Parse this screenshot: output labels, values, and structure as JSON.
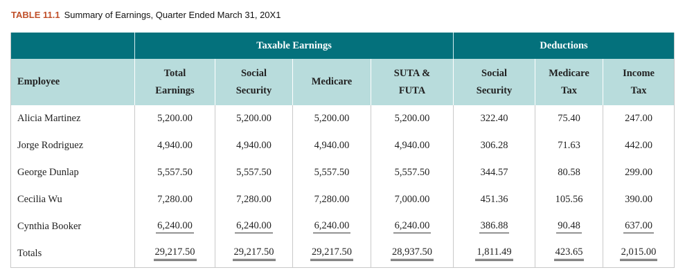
{
  "caption": {
    "number": "TABLE 11.1",
    "title": "Summary of Earnings, Quarter Ended March 31, 20X1"
  },
  "group_headers": {
    "taxable": "Taxable Earnings",
    "deductions": "Deductions"
  },
  "columns": {
    "employee": "Employee",
    "total_l1": "Total",
    "total_l2": "Earnings",
    "ss_l1": "Social",
    "ss_l2": "Security",
    "medicare": "Medicare",
    "suta_l1": "SUTA &",
    "suta_l2": "FUTA",
    "dss_l1": "Social",
    "dss_l2": "Security",
    "dmed_l1": "Medicare",
    "dmed_l2": "Tax",
    "inc_l1": "Income",
    "inc_l2": "Tax"
  },
  "rows": [
    [
      "Alicia Martinez",
      "5,200.00",
      "5,200.00",
      "5,200.00",
      "5,200.00",
      "322.40",
      "75.40",
      "247.00"
    ],
    [
      "Jorge Rodriguez",
      "4,940.00",
      "4,940.00",
      "4,940.00",
      "4,940.00",
      "306.28",
      "71.63",
      "442.00"
    ],
    [
      "George Dunlap",
      "5,557.50",
      "5,557.50",
      "5,557.50",
      "5,557.50",
      "344.57",
      "80.58",
      "299.00"
    ],
    [
      "Cecilia Wu",
      "7,280.00",
      "7,280.00",
      "7,280.00",
      "7,000.00",
      "451.36",
      "105.56",
      "390.00"
    ],
    [
      "Cynthia Booker",
      "6,240.00",
      "6,240.00",
      "6,240.00",
      "6,240.00",
      "386.88",
      "90.48",
      "637.00"
    ],
    [
      "Totals",
      "29,217.50",
      "29,217.50",
      "29,217.50",
      "28,937.50",
      "1,811.49",
      "423.65",
      "2,015.00"
    ]
  ]
}
